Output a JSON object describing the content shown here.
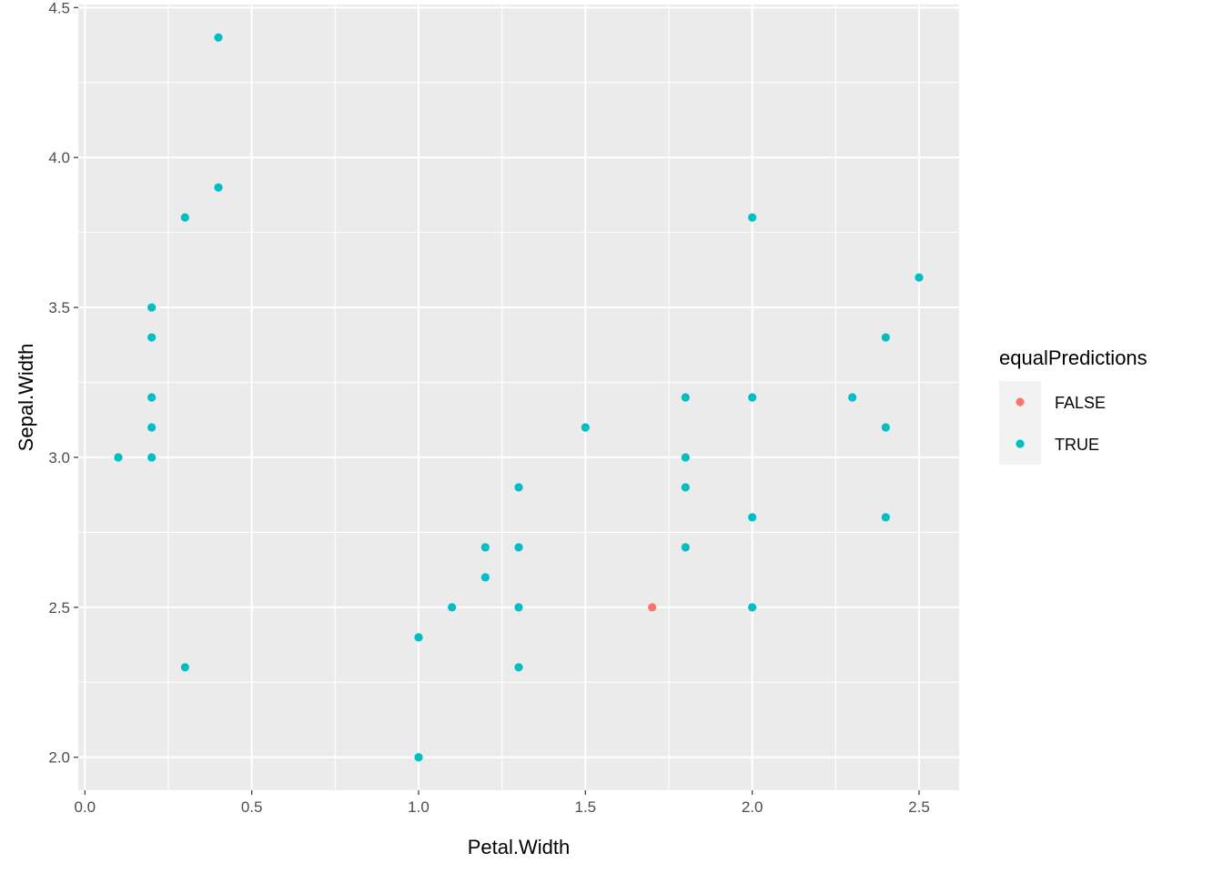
{
  "chart_data": {
    "type": "scatter",
    "title": "",
    "xlabel": "Petal.Width",
    "ylabel": "Sepal.Width",
    "xlim": [
      -0.02,
      2.62
    ],
    "ylim": [
      1.89,
      4.51
    ],
    "x_ticks": [
      {
        "value": 0.0,
        "label": "0.0"
      },
      {
        "value": 0.5,
        "label": "0.5"
      },
      {
        "value": 1.0,
        "label": "1.0"
      },
      {
        "value": 1.5,
        "label": "1.5"
      },
      {
        "value": 2.0,
        "label": "2.0"
      },
      {
        "value": 2.5,
        "label": "2.5"
      }
    ],
    "y_ticks": [
      {
        "value": 2.0,
        "label": "2.0"
      },
      {
        "value": 2.5,
        "label": "2.5"
      },
      {
        "value": 3.0,
        "label": "3.0"
      },
      {
        "value": 3.5,
        "label": "3.5"
      },
      {
        "value": 4.0,
        "label": "4.0"
      },
      {
        "value": 4.5,
        "label": "4.5"
      }
    ],
    "x_minor": [
      0.25,
      0.75,
      1.25,
      1.75,
      2.25
    ],
    "y_minor": [
      2.25,
      2.75,
      3.25,
      3.75,
      4.25
    ],
    "grid": true,
    "legend": {
      "title": "equalPredictions",
      "placement": "right",
      "entries": [
        {
          "label": "FALSE",
          "color": "#F8766D"
        },
        {
          "label": "TRUE",
          "color": "#00BFC4"
        }
      ]
    },
    "series": [
      {
        "name": "FALSE",
        "color": "#F8766D",
        "points": [
          {
            "x": 1.7,
            "y": 2.5
          }
        ]
      },
      {
        "name": "TRUE",
        "color": "#00BFC4",
        "points": [
          {
            "x": 0.4,
            "y": 4.4
          },
          {
            "x": 0.4,
            "y": 3.9
          },
          {
            "x": 0.3,
            "y": 3.8
          },
          {
            "x": 0.2,
            "y": 3.5
          },
          {
            "x": 0.2,
            "y": 3.4
          },
          {
            "x": 0.2,
            "y": 3.2
          },
          {
            "x": 0.2,
            "y": 3.1
          },
          {
            "x": 0.2,
            "y": 3.0
          },
          {
            "x": 0.1,
            "y": 3.0
          },
          {
            "x": 0.3,
            "y": 2.3
          },
          {
            "x": 1.0,
            "y": 2.4
          },
          {
            "x": 1.0,
            "y": 2.0
          },
          {
            "x": 1.1,
            "y": 2.5
          },
          {
            "x": 1.2,
            "y": 2.7
          },
          {
            "x": 1.2,
            "y": 2.6
          },
          {
            "x": 1.3,
            "y": 2.9
          },
          {
            "x": 1.3,
            "y": 2.7
          },
          {
            "x": 1.3,
            "y": 2.5
          },
          {
            "x": 1.3,
            "y": 2.3
          },
          {
            "x": 1.5,
            "y": 3.1
          },
          {
            "x": 1.8,
            "y": 3.2
          },
          {
            "x": 1.8,
            "y": 3.0
          },
          {
            "x": 1.8,
            "y": 2.9
          },
          {
            "x": 1.8,
            "y": 2.7
          },
          {
            "x": 2.0,
            "y": 3.8
          },
          {
            "x": 2.0,
            "y": 3.2
          },
          {
            "x": 2.0,
            "y": 2.8
          },
          {
            "x": 2.0,
            "y": 2.5
          },
          {
            "x": 2.3,
            "y": 3.2
          },
          {
            "x": 2.4,
            "y": 3.4
          },
          {
            "x": 2.4,
            "y": 3.1
          },
          {
            "x": 2.4,
            "y": 2.8
          },
          {
            "x": 2.5,
            "y": 3.6
          }
        ]
      }
    ]
  }
}
